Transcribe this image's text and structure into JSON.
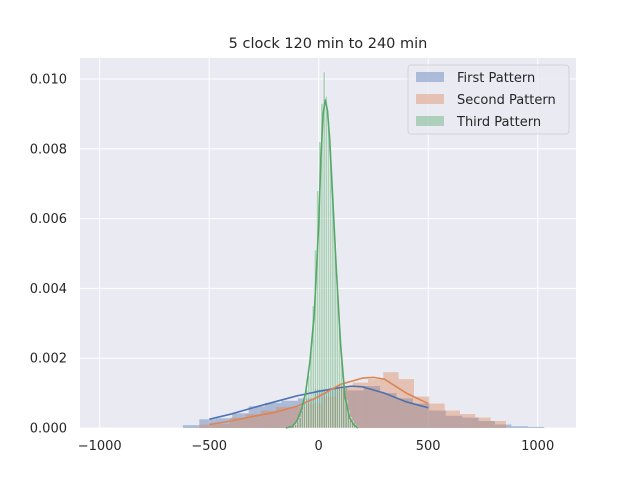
{
  "chart_data": {
    "type": "histogram+kde",
    "title": "5 clock 120 min to 240 min",
    "xlabel": "",
    "ylabel": "",
    "xlim": [
      -1090,
      1175
    ],
    "ylim": [
      0,
      0.0106
    ],
    "xticks": [
      -1000,
      -500,
      0,
      500,
      1000
    ],
    "xtick_labels": [
      "−1000",
      "−500",
      "0",
      "500",
      "1000"
    ],
    "yticks": [
      0,
      0.002,
      0.004,
      0.006,
      0.008,
      0.01
    ],
    "ytick_labels": [
      "0.000",
      "0.002",
      "0.004",
      "0.006",
      "0.008",
      "0.010"
    ],
    "grid": true,
    "legend_position": "top-right",
    "series": [
      {
        "name": "First Pattern",
        "color": "#4c72b0",
        "bin_edges": [
          -620,
          -545,
          -470,
          -395,
          -320,
          -245,
          -170,
          -95,
          -20,
          55,
          130,
          205,
          280,
          355,
          430,
          505,
          580,
          655,
          730,
          805,
          880,
          955,
          1030
        ],
        "bin_heights": [
          8e-05,
          0.00025,
          0.00028,
          0.00042,
          0.00062,
          0.00072,
          0.00078,
          0.00085,
          0.0011,
          0.00115,
          0.00108,
          0.0012,
          0.001,
          0.00085,
          0.0007,
          0.0005,
          0.00035,
          0.0003,
          0.0002,
          0.0001,
          5e-05,
          3e-05
        ],
        "kde_x": [
          -500,
          -400,
          -300,
          -200,
          -100,
          0,
          100,
          150,
          200,
          300,
          400,
          500
        ],
        "kde_y": [
          0.00025,
          0.0004,
          0.00058,
          0.00075,
          0.00092,
          0.00105,
          0.00116,
          0.0012,
          0.00118,
          0.001,
          0.00075,
          0.00058
        ]
      },
      {
        "name": "Second Pattern",
        "color": "#dd8452",
        "bin_edges": [
          -545,
          -475,
          -405,
          -335,
          -265,
          -195,
          -125,
          -55,
          15,
          85,
          155,
          225,
          295,
          365,
          435,
          505,
          575,
          645,
          715,
          785,
          855
        ],
        "bin_heights": [
          0.0001,
          0.00012,
          0.0003,
          0.0004,
          0.0005,
          0.0006,
          0.0006,
          0.0007,
          0.0009,
          0.0012,
          0.0013,
          0.0014,
          0.0016,
          0.0014,
          0.0009,
          0.0007,
          0.0005,
          0.0004,
          0.0003,
          0.0002
        ],
        "kde_x": [
          -500,
          -400,
          -300,
          -200,
          -100,
          0,
          100,
          200,
          250,
          300,
          400,
          500
        ],
        "kde_y": [
          0.0001,
          0.0002,
          0.00033,
          0.00045,
          0.00062,
          0.0009,
          0.00125,
          0.00143,
          0.00145,
          0.0014,
          0.001,
          0.0007
        ]
      },
      {
        "name": "Third Pattern",
        "color": "#55a868",
        "bin_edges": [
          -110,
          -100,
          -90,
          -80,
          -70,
          -60,
          -50,
          -40,
          -30,
          -20,
          -10,
          0,
          10,
          20,
          30,
          40,
          50,
          60,
          70,
          80,
          90,
          100,
          110,
          120,
          130,
          140,
          150,
          160,
          170,
          180
        ],
        "bin_heights": [
          0.0001,
          0.0002,
          0.0003,
          0.0005,
          0.0008,
          0.0011,
          0.0015,
          0.0022,
          0.0035,
          0.0051,
          0.0068,
          0.0082,
          0.0093,
          0.0102,
          0.0095,
          0.0088,
          0.0078,
          0.0066,
          0.0053,
          0.004,
          0.0029,
          0.002,
          0.0013,
          0.0008,
          0.0005,
          0.0003,
          0.0002,
          0.0001,
          5e-05
        ],
        "kde_x": [
          -150,
          -120,
          -100,
          -80,
          -60,
          -40,
          -20,
          0,
          10,
          20,
          30,
          40,
          50,
          60,
          80,
          100,
          120,
          140,
          160,
          180
        ],
        "kde_y": [
          0.0,
          5e-05,
          0.0002,
          0.0005,
          0.001,
          0.0019,
          0.0033,
          0.0058,
          0.0077,
          0.009,
          0.0094,
          0.0091,
          0.0083,
          0.0071,
          0.0046,
          0.0024,
          0.0009,
          0.0003,
          0.0001,
          0.0
        ]
      }
    ]
  }
}
